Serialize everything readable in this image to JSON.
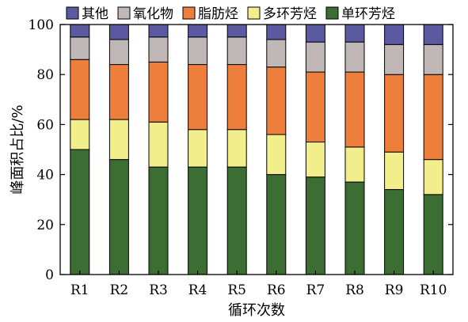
{
  "chart_data": {
    "type": "bar",
    "stacked": true,
    "xlabel": "循环次数",
    "ylabel": "峰面积占比/%",
    "ylim": [
      0,
      100
    ],
    "yticks": [
      0,
      20,
      40,
      60,
      80,
      100
    ],
    "categories": [
      "R1",
      "R2",
      "R3",
      "R4",
      "R5",
      "R6",
      "R7",
      "R8",
      "R9",
      "R10"
    ],
    "legend_position": "top",
    "legend_order": [
      "其他",
      "氧化物",
      "脂肪烃",
      "多环芳烃",
      "单环芳烃"
    ],
    "series": [
      {
        "name": "单环芳烃",
        "color": "#3c6e34",
        "values": [
          50,
          46,
          43,
          43,
          43,
          40,
          39,
          37,
          34,
          32
        ]
      },
      {
        "name": "多环芳烃",
        "color": "#f2ee8c",
        "values": [
          12,
          16,
          18,
          15,
          15,
          16,
          14,
          14,
          15,
          14
        ]
      },
      {
        "name": "脂肪烃",
        "color": "#ee7e3c",
        "values": [
          24,
          22,
          24,
          26,
          26,
          27,
          28,
          30,
          31,
          34
        ]
      },
      {
        "name": "氧化物",
        "color": "#bfb8b6",
        "values": [
          9,
          10,
          10,
          11,
          11,
          11,
          12,
          12,
          12,
          12
        ]
      },
      {
        "name": "其他",
        "color": "#5b5aa0",
        "values": [
          5,
          6,
          5,
          5,
          5,
          6,
          7,
          7,
          8,
          8
        ]
      }
    ]
  }
}
